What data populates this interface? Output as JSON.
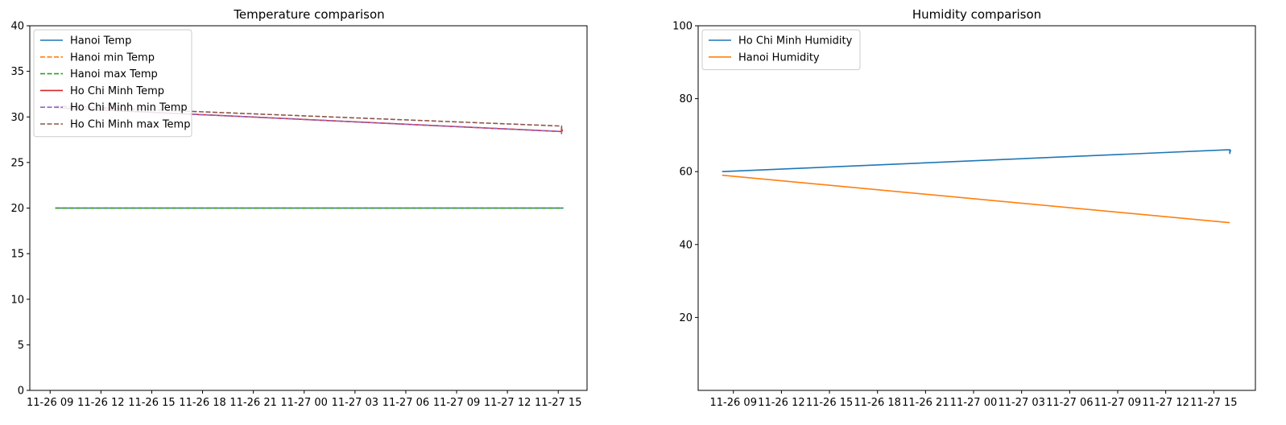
{
  "charts": [
    {
      "type": "line",
      "title": "Temperature comparison",
      "xlabel": "",
      "ylabel": "",
      "ylim": [
        0,
        40
      ],
      "yticks": [
        0,
        5,
        10,
        15,
        20,
        25,
        30,
        35,
        40
      ],
      "x_range_hours": [
        -1.2,
        31.7
      ],
      "xticks": [
        {
          "h": 0,
          "label": "11-26 09"
        },
        {
          "h": 3,
          "label": "11-26 12"
        },
        {
          "h": 6,
          "label": "11-26 15"
        },
        {
          "h": 9,
          "label": "11-26 18"
        },
        {
          "h": 12,
          "label": "11-26 21"
        },
        {
          "h": 15,
          "label": "11-27 00"
        },
        {
          "h": 18,
          "label": "11-27 03"
        },
        {
          "h": 21,
          "label": "11-27 06"
        },
        {
          "h": 24,
          "label": "11-27 09"
        },
        {
          "h": 27,
          "label": "11-27 12"
        },
        {
          "h": 30,
          "label": "11-27 15"
        }
      ],
      "legend_position": "upper left",
      "series": [
        {
          "name": "Hanoi Temp",
          "color": "#1f77b4",
          "dash": "solid",
          "x": [
            0.3,
            30.3
          ],
          "y": [
            20,
            20
          ]
        },
        {
          "name": "Hanoi min Temp",
          "color": "#ff7f0e",
          "dash": "dashed",
          "x": [
            0.3,
            30.3
          ],
          "y": [
            20,
            20
          ]
        },
        {
          "name": "Hanoi max Temp",
          "color": "#2ca02c",
          "dash": "dashed",
          "x": [
            0.3,
            30.3
          ],
          "y": [
            20,
            20
          ]
        },
        {
          "name": "Ho Chi Minh Temp",
          "color": "#d62728",
          "dash": "solid",
          "x": [
            0.3,
            30.2,
            30.2,
            30.25
          ],
          "y": [
            31.0,
            28.4,
            28.7,
            28.4
          ]
        },
        {
          "name": "Ho Chi Minh min Temp",
          "color": "#9467bd",
          "dash": "dashed",
          "x": [
            0.3,
            30.2,
            30.2
          ],
          "y": [
            31.0,
            28.4,
            28.1
          ]
        },
        {
          "name": "Ho Chi Minh max Temp",
          "color": "#8c564b",
          "dash": "dashed",
          "x": [
            0.3,
            30.2,
            30.2
          ],
          "y": [
            31.2,
            29.0,
            28.4
          ]
        }
      ]
    },
    {
      "type": "line",
      "title": "Humidity comparison",
      "xlabel": "",
      "ylabel": "",
      "ylim": [
        0,
        100
      ],
      "yticks": [
        20,
        40,
        60,
        80,
        100
      ],
      "x_range_hours": [
        -2.2,
        32.6
      ],
      "xticks": [
        {
          "h": 0,
          "label": "11-26 09"
        },
        {
          "h": 3,
          "label": "11-26 12"
        },
        {
          "h": 6,
          "label": "11-26 15"
        },
        {
          "h": 9,
          "label": "11-26 18"
        },
        {
          "h": 12,
          "label": "11-26 21"
        },
        {
          "h": 15,
          "label": "11-27 00"
        },
        {
          "h": 18,
          "label": "11-27 03"
        },
        {
          "h": 21,
          "label": "11-27 06"
        },
        {
          "h": 24,
          "label": "11-27 09"
        },
        {
          "h": 27,
          "label": "11-27 12"
        },
        {
          "h": 30,
          "label": "11-27 15"
        }
      ],
      "legend_position": "upper left",
      "series": [
        {
          "name": "Ho Chi Minh Humidity",
          "color": "#1f77b4",
          "dash": "solid",
          "x": [
            -0.7,
            31.0,
            31.0,
            31.05
          ],
          "y": [
            60,
            66,
            65,
            66
          ]
        },
        {
          "name": "Hanoi Humidity",
          "color": "#ff7f0e",
          "dash": "solid",
          "x": [
            -0.7,
            31.0
          ],
          "y": [
            59,
            46
          ]
        }
      ]
    }
  ]
}
